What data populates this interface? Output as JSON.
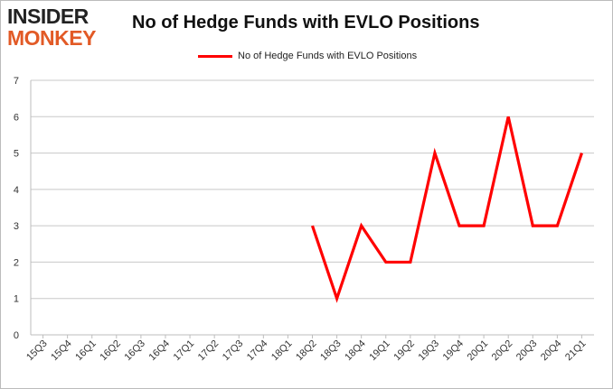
{
  "brand": {
    "logo_top": "INSIDER",
    "logo_bottom": "MONKEY",
    "colors": {
      "dark": "#222222",
      "orange": "#e25a26"
    }
  },
  "chart_data": {
    "type": "line",
    "title": "No of Hedge Funds with EVLO Positions",
    "xlabel": "",
    "ylabel": "",
    "categories": [
      "15Q3",
      "15Q4",
      "16Q1",
      "16Q2",
      "16Q3",
      "16Q4",
      "17Q1",
      "17Q2",
      "17Q3",
      "17Q4",
      "18Q1",
      "18Q2",
      "18Q3",
      "18Q4",
      "19Q1",
      "19Q2",
      "19Q3",
      "19Q4",
      "20Q1",
      "20Q2",
      "20Q3",
      "20Q4",
      "21Q1"
    ],
    "series": [
      {
        "name": "No of Hedge Funds with EVLO Positions",
        "color": "#ff0000",
        "values": [
          null,
          null,
          null,
          null,
          null,
          null,
          null,
          null,
          null,
          null,
          null,
          3,
          1,
          3,
          2,
          2,
          5,
          3,
          3,
          6,
          3,
          3,
          5
        ]
      }
    ],
    "ylim": [
      0,
      7
    ],
    "yticks": [
      0,
      1,
      2,
      3,
      4,
      5,
      6,
      7
    ],
    "grid": true,
    "legend_position": "top-center"
  }
}
